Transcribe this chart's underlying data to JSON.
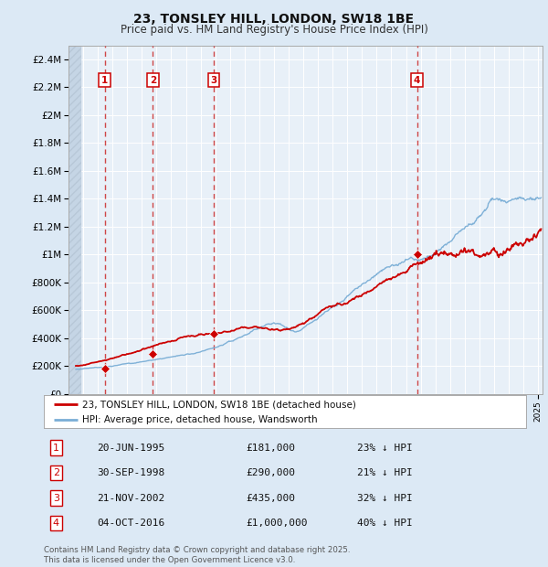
{
  "title": "23, TONSLEY HILL, LONDON, SW18 1BE",
  "subtitle": "Price paid vs. HM Land Registry's House Price Index (HPI)",
  "ylim": [
    0,
    2500000
  ],
  "yticks": [
    0,
    200000,
    400000,
    600000,
    800000,
    1000000,
    1200000,
    1400000,
    1600000,
    1800000,
    2000000,
    2200000,
    2400000
  ],
  "ytick_labels": [
    "£0",
    "£200K",
    "£400K",
    "£600K",
    "£800K",
    "£1M",
    "£1.2M",
    "£1.4M",
    "£1.6M",
    "£1.8M",
    "£2M",
    "£2.2M",
    "£2.4M"
  ],
  "xlim_start": 1993.5,
  "xlim_end": 2025.3,
  "transactions": [
    {
      "num": 1,
      "year": 1995.47,
      "price": 181000,
      "label": "20-JUN-1995",
      "price_str": "£181,000",
      "hpi_str": "23% ↓ HPI"
    },
    {
      "num": 2,
      "year": 1998.75,
      "price": 290000,
      "label": "30-SEP-1998",
      "price_str": "£290,000",
      "hpi_str": "21% ↓ HPI"
    },
    {
      "num": 3,
      "year": 2002.9,
      "price": 435000,
      "label": "21-NOV-2002",
      "price_str": "£435,000",
      "hpi_str": "32% ↓ HPI"
    },
    {
      "num": 4,
      "year": 2016.75,
      "price": 1000000,
      "label": "04-OCT-2016",
      "price_str": "£1,000,000",
      "hpi_str": "40% ↓ HPI"
    }
  ],
  "bg_color": "#dce9f5",
  "plot_bg": "#e8f0f8",
  "hatch_color": "#c5d5e5",
  "grid_color": "#ffffff",
  "red_line_color": "#cc0000",
  "blue_line_color": "#7aaed6",
  "dashed_line_color": "#cc3333",
  "footer_text": "Contains HM Land Registry data © Crown copyright and database right 2025.\nThis data is licensed under the Open Government Licence v3.0.",
  "legend_entry1": "23, TONSLEY HILL, LONDON, SW18 1BE (detached house)",
  "legend_entry2": "HPI: Average price, detached house, Wandsworth"
}
